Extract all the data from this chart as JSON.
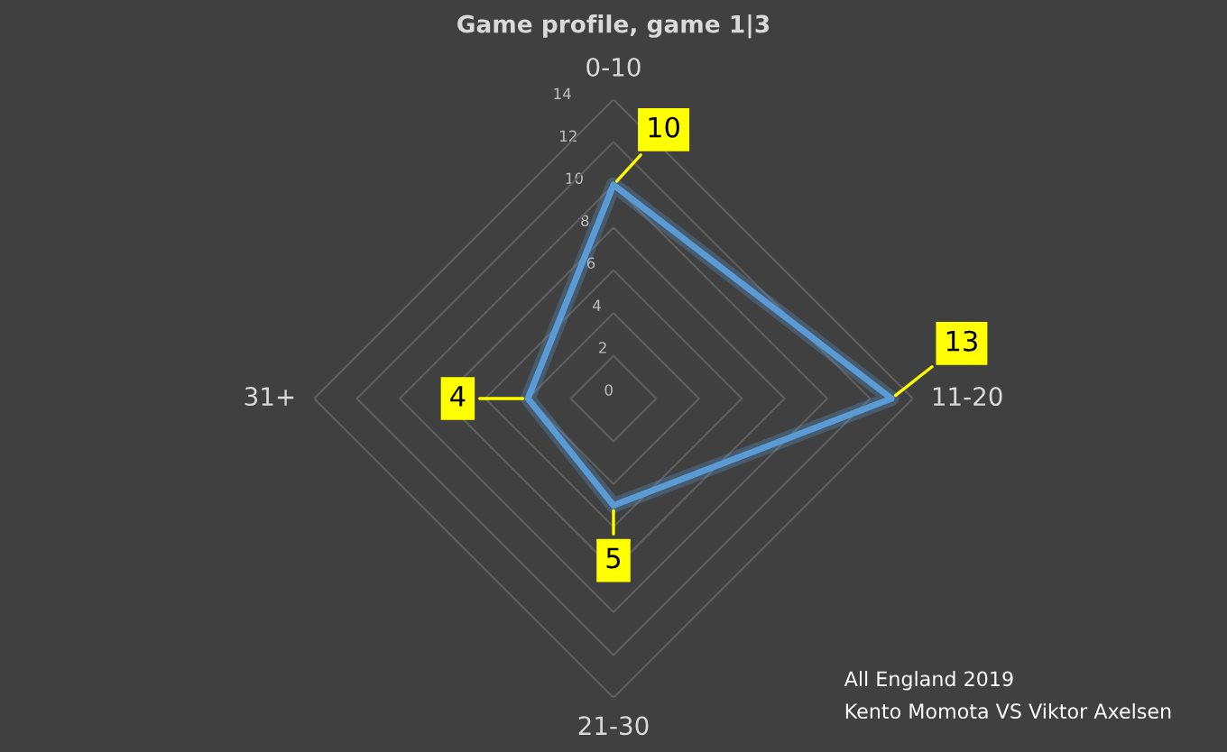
{
  "chart_data": {
    "type": "radar",
    "title": "Game profile, game 1|3",
    "categories": [
      "0-10",
      "11-20",
      "21-30",
      "31+"
    ],
    "series": [
      {
        "color": "#5b9bd5",
        "values": [
          10,
          13,
          5,
          4
        ]
      }
    ],
    "ylim": [
      0,
      14
    ],
    "yticks": [
      0,
      2,
      4,
      6,
      8,
      10,
      12,
      14
    ],
    "grid": true,
    "data_labels": true,
    "marker": "none",
    "annotations": [
      "All England 2019",
      "Kento Momota VS Viktor Axelsen"
    ]
  }
}
